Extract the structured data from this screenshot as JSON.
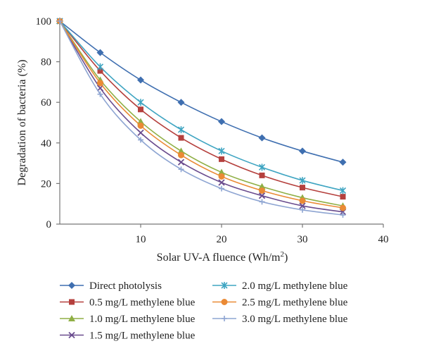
{
  "chart_data": {
    "type": "line",
    "xlabel": "Solar UV-A fluence (Wh/m",
    "xlabel_sup": "2",
    "xlabel_end": ")",
    "ylabel": "Degradation of bacteria (%)",
    "xlim": [
      0,
      40
    ],
    "ylim": [
      0,
      100
    ],
    "x_ticks": [
      10,
      20,
      30,
      40
    ],
    "y_ticks": [
      0,
      20,
      40,
      60,
      80,
      100
    ],
    "grid": false,
    "legend_position": "bottom",
    "x": [
      0,
      5,
      10,
      15,
      20,
      25,
      30,
      35
    ],
    "series": [
      {
        "name": "Direct photolysis",
        "color": "#3F6FB0",
        "marker": "diamond",
        "values": [
          100,
          84.5,
          71,
          60,
          50.5,
          42.5,
          36,
          30.5
        ]
      },
      {
        "name": "0.5 mg/L methylene blue",
        "color": "#B5403D",
        "marker": "square",
        "values": [
          100,
          75.5,
          56.5,
          42.5,
          32,
          24,
          18,
          13.5
        ]
      },
      {
        "name": "1.0 mg/L methylene blue",
        "color": "#8FAF45",
        "marker": "triangle",
        "values": [
          100,
          71,
          50.5,
          36,
          25.5,
          18.5,
          13,
          9
        ]
      },
      {
        "name": "1.5 mg/L methylene blue",
        "color": "#6A4C8E",
        "marker": "x",
        "values": [
          100,
          67,
          45,
          30.5,
          20.5,
          14,
          9,
          6
        ]
      },
      {
        "name": "2.0 mg/L methylene blue",
        "color": "#3FA5C2",
        "marker": "asterisk",
        "values": [
          100,
          77.5,
          60,
          46.5,
          36,
          28,
          21.5,
          16.5
        ]
      },
      {
        "name": "2.5 mg/L methylene blue",
        "color": "#EA8A35",
        "marker": "circle",
        "values": [
          100,
          69.5,
          48.5,
          34,
          23.5,
          16.5,
          11.5,
          8
        ]
      },
      {
        "name": "3.0 mg/L methylene blue",
        "color": "#8EA5D2",
        "marker": "plus",
        "values": [
          100,
          64,
          41.5,
          27,
          17.5,
          11,
          7,
          4.5
        ]
      }
    ]
  }
}
